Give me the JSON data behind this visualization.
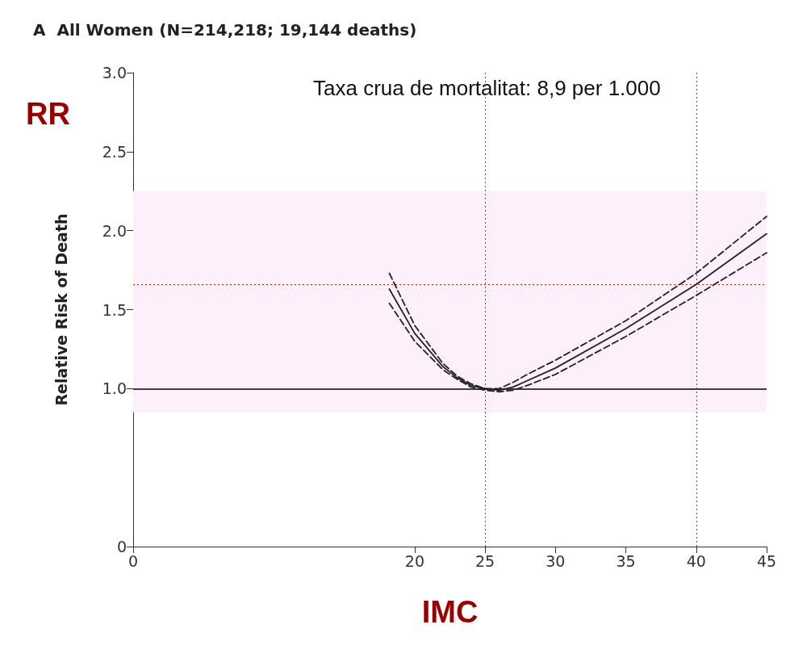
{
  "chart_data": {
    "type": "line",
    "title": "A  All Women (N=214,218; 19,144 deaths)",
    "xlabel": "IMC",
    "ylabel": "Relative Risk of Death",
    "annotations": [
      "Taxa crua de mortalitat: 8,9 per 1.000",
      "RR"
    ],
    "xlim": [
      0,
      45
    ],
    "xticks": [
      0,
      20,
      25,
      30,
      35,
      40,
      45
    ],
    "ylim": [
      0,
      3.0
    ],
    "yticks": [
      0,
      {
        "value": 1,
        "label": "1.0"
      },
      1.5,
      {
        "value": 2,
        "label": "2.0"
      },
      2.5,
      {
        "value": 3,
        "label": "3.0"
      }
    ],
    "grid": false,
    "marker": "none",
    "series": [
      {
        "color": "#222222",
        "line_style": "dashed",
        "x": [
          18.2,
          20,
          22,
          23,
          24,
          25,
          26,
          27,
          28,
          30,
          35,
          40,
          45
        ],
        "values": [
          1.73,
          1.4,
          1.16,
          1.08,
          1.03,
          1.0,
          1.0,
          1.04,
          1.09,
          1.18,
          1.43,
          1.73,
          2.09
        ]
      },
      {
        "color": "#222222",
        "line_style": "solid",
        "x": [
          18.2,
          20,
          22,
          23,
          24,
          25,
          26,
          27,
          28,
          30,
          35,
          40,
          45
        ],
        "values": [
          1.63,
          1.35,
          1.14,
          1.07,
          1.02,
          1.0,
          0.99,
          1.01,
          1.05,
          1.13,
          1.38,
          1.66,
          1.98
        ]
      },
      {
        "color": "#222222",
        "line_style": "dashed",
        "x": [
          18.2,
          20,
          22,
          23,
          24,
          25,
          26,
          27,
          28,
          30,
          35,
          40,
          45
        ],
        "values": [
          1.54,
          1.3,
          1.12,
          1.06,
          1.01,
          0.99,
          0.98,
          0.99,
          1.02,
          1.09,
          1.33,
          1.59,
          1.86
        ]
      }
    ],
    "ref_lines": [
      {
        "axis": "y",
        "value": 1,
        "color": "#000000",
        "line_style": "solid"
      },
      {
        "axis": "x",
        "value": 25,
        "color": "#cc2200",
        "line_style": "dotted"
      },
      {
        "axis": "x",
        "value": 40,
        "color": "#cc2200",
        "line_style": "dotted"
      },
      {
        "axis": "y",
        "value": 1.66,
        "color": "#cc2200",
        "line_style": "dotted"
      }
    ],
    "bands": [
      {
        "axis": "y",
        "from": 0.85,
        "to": 2.25,
        "color": "#fdf0fb"
      }
    ]
  }
}
